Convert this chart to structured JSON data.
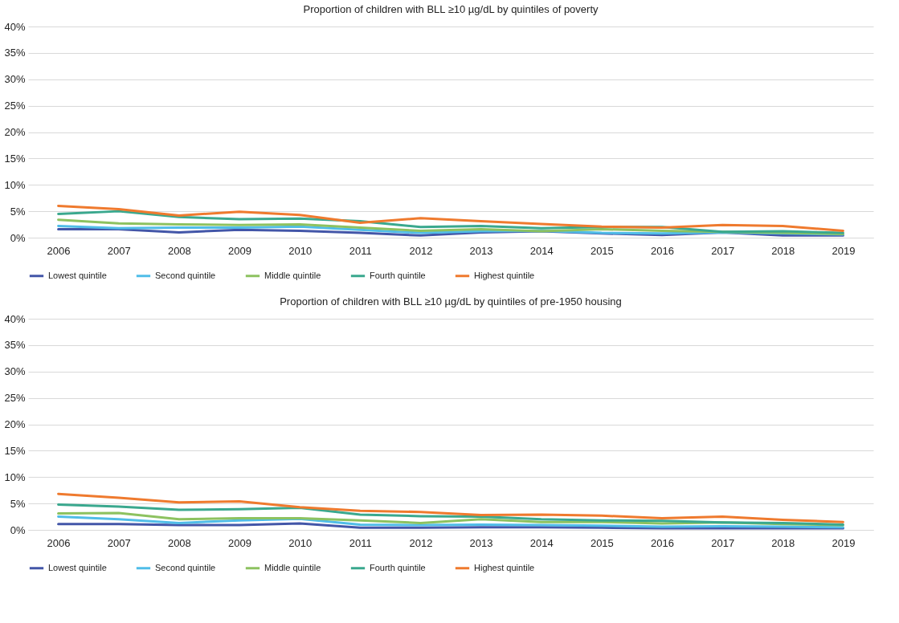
{
  "chart_data": [
    {
      "type": "line",
      "title": "Proportion of children with BLL ≥10 µg/dL by quintiles of poverty",
      "categories": [
        "2006",
        "2007",
        "2008",
        "2009",
        "2010",
        "2011",
        "2012",
        "2013",
        "2014",
        "2015",
        "2016",
        "2017",
        "2018",
        "2019"
      ],
      "series": [
        {
          "name": "Lowest quintile",
          "color": "#4356a8",
          "values": [
            1.6,
            1.6,
            1.0,
            1.5,
            1.3,
            0.9,
            0.4,
            1.0,
            1.2,
            0.8,
            0.5,
            1.0,
            0.4,
            0.4
          ]
        },
        {
          "name": "Second quintile",
          "color": "#50bde8",
          "values": [
            2.2,
            1.8,
            1.9,
            1.9,
            2.1,
            1.5,
            0.9,
            1.2,
            1.3,
            0.9,
            0.8,
            1.0,
            0.8,
            0.6
          ]
        },
        {
          "name": "Middle quintile",
          "color": "#8dc260",
          "values": [
            3.4,
            2.7,
            2.5,
            2.4,
            2.5,
            1.9,
            1.3,
            1.6,
            1.2,
            1.6,
            1.3,
            1.1,
            0.9,
            0.7
          ]
        },
        {
          "name": "Fourth quintile",
          "color": "#3aa88e",
          "values": [
            4.5,
            5.0,
            3.9,
            3.5,
            3.6,
            3.1,
            2.0,
            2.2,
            1.8,
            2.0,
            2.0,
            1.1,
            1.2,
            0.9
          ]
        },
        {
          "name": "Highest quintile",
          "color": "#ef7a2e",
          "values": [
            6.0,
            5.4,
            4.2,
            4.9,
            4.3,
            2.8,
            3.7,
            3.1,
            2.6,
            2.1,
            1.9,
            2.4,
            2.2,
            1.3
          ]
        }
      ],
      "ylim": [
        0,
        40
      ],
      "yticks": [
        {
          "value": 0,
          "label": "0%"
        },
        {
          "value": 5,
          "label": "5%"
        },
        {
          "value": 10,
          "label": "10%"
        },
        {
          "value": 15,
          "label": "15%"
        },
        {
          "value": 20,
          "label": "20%"
        },
        {
          "value": 25,
          "label": "25%"
        },
        {
          "value": 30,
          "label": "30%"
        },
        {
          "value": 35,
          "label": "35%"
        },
        {
          "value": 40,
          "label": "40%"
        }
      ],
      "grid": "y",
      "legend": "bottom"
    },
    {
      "type": "line",
      "title": "Proportion of children with BLL ≥10 µg/dL by quintiles of pre-1950 housing",
      "categories": [
        "2006",
        "2007",
        "2008",
        "2009",
        "2010",
        "2011",
        "2012",
        "2013",
        "2014",
        "2015",
        "2016",
        "2017",
        "2018",
        "2019"
      ],
      "series": [
        {
          "name": "Lowest quintile",
          "color": "#4356a8",
          "values": [
            1.1,
            1.1,
            0.9,
            0.9,
            1.2,
            0.4,
            0.4,
            0.5,
            0.5,
            0.4,
            0.3,
            0.3,
            0.3,
            0.3
          ]
        },
        {
          "name": "Second quintile",
          "color": "#50bde8",
          "values": [
            2.5,
            2.0,
            1.3,
            1.8,
            2.1,
            1.0,
            0.9,
            1.0,
            0.9,
            0.8,
            0.6,
            0.7,
            0.6,
            0.5
          ]
        },
        {
          "name": "Middle quintile",
          "color": "#8dc260",
          "values": [
            3.1,
            3.2,
            2.0,
            2.2,
            2.2,
            1.8,
            1.3,
            2.0,
            1.5,
            1.5,
            1.2,
            1.4,
            1.1,
            0.9
          ]
        },
        {
          "name": "Fourth quintile",
          "color": "#3aa88e",
          "values": [
            4.8,
            4.4,
            3.8,
            3.9,
            4.2,
            2.9,
            2.6,
            2.5,
            2.0,
            1.8,
            1.7,
            1.4,
            1.3,
            1.0
          ]
        },
        {
          "name": "Highest quintile",
          "color": "#ef7a2e",
          "values": [
            6.8,
            6.1,
            5.2,
            5.4,
            4.3,
            3.6,
            3.4,
            2.8,
            2.9,
            2.7,
            2.2,
            2.5,
            1.9,
            1.5
          ]
        }
      ],
      "ylim": [
        0,
        40
      ],
      "yticks": [
        {
          "value": 0,
          "label": "0%"
        },
        {
          "value": 5,
          "label": "5%"
        },
        {
          "value": 10,
          "label": "10%"
        },
        {
          "value": 15,
          "label": "15%"
        },
        {
          "value": 20,
          "label": "20%"
        },
        {
          "value": 25,
          "label": "25%"
        },
        {
          "value": 30,
          "label": "30%"
        },
        {
          "value": 35,
          "label": "35%"
        },
        {
          "value": 40,
          "label": "40%"
        }
      ],
      "grid": "y",
      "legend": "bottom"
    }
  ]
}
